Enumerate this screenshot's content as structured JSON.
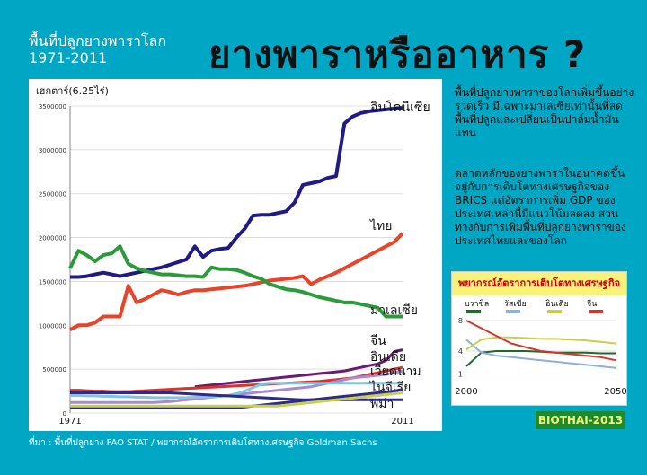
{
  "header": {
    "small_title_line1": "พื้นที่ปลูกยางพาราโลก",
    "small_title_line2": "1971-2011",
    "main_title": "ยางพาราหรืออาหาร ?"
  },
  "main_chart": {
    "unit_label": "เฮกตาร์(6.25ไร่)"
  },
  "text": {
    "para1": "พื้นที่ปลูกยางพาราของโลกเพิ่มขึ้นอย่างรวดเร็ว มีเฉพาะมาเลเซียเท่านั้นที่ลดพื้นที่ปลูกและเปลี่ยนเป็นปาล์มน้ำมันแทน",
    "para2": "ตลาดหลักของยางพาราในอนาคตขึ้นอยู่กับการเติบโตทางเศรษฐกิจของ BRICS แต่อัตราการเพิ่ม GDP ของประเทศเหล่านี้มีแนวโน้มลดลง สวนทางกับการเพิ่มพื้นที่ปลูกยางพาราของประเทศไทยและของโลก"
  },
  "badge": "BIOTHAI-2013",
  "source": "ที่มา : พื้นที่ปลูกยาง FAO STAT / พยากรณ์อัตราการเติบโตทางเศรษฐกิจ Goldman Sachs",
  "chart_data": [
    {
      "type": "line",
      "title": "พื้นที่ปลูกยางพาราโลก 1971-2011",
      "ylabel": "เฮกตาร์(6.25ไร่)",
      "x_tick_labels": [
        "1971",
        "2011"
      ],
      "x": [
        1971,
        1972,
        1973,
        1974,
        1975,
        1976,
        1977,
        1978,
        1979,
        1980,
        1981,
        1982,
        1983,
        1984,
        1985,
        1986,
        1987,
        1988,
        1989,
        1990,
        1991,
        1992,
        1993,
        1994,
        1995,
        1996,
        1997,
        1998,
        1999,
        2000,
        2001,
        2002,
        2003,
        2004,
        2005,
        2006,
        2007,
        2008,
        2009,
        2010,
        2011
      ],
      "xlim": [
        1971,
        2011
      ],
      "ylim": [
        0,
        3500000
      ],
      "y_ticks": [
        0,
        500000,
        1000000,
        1500000,
        2000000,
        2500000,
        3000000,
        3500000
      ],
      "y_tick_labels": [
        "0",
        "500000",
        "1000000",
        "1500000",
        "2000000",
        "2500000",
        "3000000",
        "3500000"
      ],
      "series": [
        {
          "name": "อินโดนีเซีย",
          "color": "#1f1a86",
          "values": [
            1550000,
            1550000,
            1560000,
            1580000,
            1600000,
            1580000,
            1560000,
            1580000,
            1600000,
            1620000,
            1640000,
            1660000,
            1690000,
            1720000,
            1750000,
            1900000,
            1780000,
            1850000,
            1870000,
            1880000,
            2000000,
            2100000,
            2250000,
            2260000,
            2260000,
            2280000,
            2300000,
            2400000,
            2600000,
            2620000,
            2640000,
            2680000,
            2700000,
            3300000,
            3380000,
            3420000,
            3440000,
            3450000,
            3460000,
            3470000,
            3480000
          ]
        },
        {
          "name": "ไทย",
          "color": "#e8442a",
          "values": [
            950000,
            1000000,
            1000000,
            1030000,
            1100000,
            1100000,
            1100000,
            1450000,
            1260000,
            1300000,
            1350000,
            1400000,
            1380000,
            1350000,
            1380000,
            1400000,
            1400000,
            1410000,
            1420000,
            1430000,
            1440000,
            1450000,
            1470000,
            1490000,
            1510000,
            1520000,
            1530000,
            1540000,
            1560000,
            1470000,
            1520000,
            1560000,
            1600000,
            1650000,
            1700000,
            1750000,
            1800000,
            1850000,
            1900000,
            1950000,
            2050000
          ]
        },
        {
          "name": "มาเลเซีย",
          "color": "#2a9a3a",
          "values": [
            1650000,
            1850000,
            1800000,
            1730000,
            1800000,
            1820000,
            1900000,
            1700000,
            1650000,
            1620000,
            1600000,
            1580000,
            1580000,
            1570000,
            1560000,
            1560000,
            1550000,
            1660000,
            1640000,
            1640000,
            1630000,
            1600000,
            1560000,
            1530000,
            1470000,
            1440000,
            1410000,
            1400000,
            1380000,
            1350000,
            1320000,
            1300000,
            1280000,
            1260000,
            1260000,
            1240000,
            1220000,
            1200000,
            1100000,
            1100000,
            1100000
          ]
        },
        {
          "name": "จีน",
          "color": "#6a1b70",
          "values": [
            null,
            null,
            null,
            null,
            null,
            null,
            null,
            null,
            null,
            null,
            null,
            null,
            null,
            null,
            null,
            300000,
            310000,
            320000,
            330000,
            340000,
            350000,
            360000,
            370000,
            380000,
            390000,
            400000,
            410000,
            420000,
            430000,
            440000,
            450000,
            460000,
            470000,
            480000,
            500000,
            520000,
            540000,
            560000,
            600000,
            700000,
            720000
          ]
        },
        {
          "name": "อินเดีย",
          "color": "#d9342b",
          "values": [
            260000,
            260000,
            255000,
            250000,
            250000,
            245000,
            245000,
            245000,
            250000,
            255000,
            260000,
            265000,
            270000,
            275000,
            280000,
            285000,
            290000,
            295000,
            300000,
            305000,
            310000,
            315000,
            320000,
            325000,
            330000,
            335000,
            340000,
            345000,
            350000,
            355000,
            360000,
            370000,
            380000,
            390000,
            400000,
            420000,
            440000,
            460000,
            480000,
            500000,
            520000
          ]
        },
        {
          "name": "เวียดนาม",
          "color": "#a78ad0",
          "values": [
            120000,
            120000,
            120000,
            120000,
            120000,
            120000,
            120000,
            120000,
            120000,
            120000,
            120000,
            125000,
            130000,
            140000,
            150000,
            160000,
            170000,
            180000,
            190000,
            200000,
            210000,
            220000,
            230000,
            240000,
            250000,
            260000,
            270000,
            280000,
            290000,
            300000,
            320000,
            340000,
            360000,
            380000,
            400000,
            410000,
            420000,
            430000,
            440000,
            460000,
            480000
          ]
        },
        {
          "name": "ไนจีเรีย",
          "color": "#7fc6e0",
          "values": [
            200000,
            200000,
            195000,
            195000,
            190000,
            190000,
            185000,
            185000,
            180000,
            180000,
            175000,
            175000,
            175000,
            175000,
            175000,
            180000,
            180000,
            185000,
            190000,
            200000,
            220000,
            250000,
            290000,
            330000,
            340000,
            340000,
            340000,
            340000,
            340000,
            340000,
            340000,
            340000,
            340000,
            340000,
            340000,
            340000,
            340000,
            340000,
            340000,
            340000,
            340000
          ]
        },
        {
          "name": "พม่า",
          "color": "#2d2a8a",
          "values": [
            60000,
            60000,
            60000,
            60000,
            60000,
            60000,
            60000,
            60000,
            60000,
            60000,
            60000,
            60000,
            60000,
            60000,
            60000,
            60000,
            60000,
            60000,
            60000,
            60000,
            60000,
            70000,
            80000,
            90000,
            100000,
            110000,
            120000,
            130000,
            140000,
            150000,
            160000,
            170000,
            180000,
            190000,
            200000,
            210000,
            220000,
            230000,
            240000,
            250000,
            270000
          ]
        },
        {
          "name": "",
          "color": "#2d2a8a",
          "values": [
            230000,
            230000,
            230000,
            230000,
            230000,
            230000,
            230000,
            230000,
            230000,
            230000,
            230000,
            230000,
            230000,
            225000,
            220000,
            215000,
            210000,
            205000,
            200000,
            195000,
            190000,
            185000,
            180000,
            175000,
            170000,
            165000,
            160000,
            155000,
            150000,
            150000,
            150000,
            150000,
            150000,
            150000,
            150000,
            150000,
            150000,
            150000,
            150000,
            150000,
            150000
          ]
        },
        {
          "name": "",
          "color": "#c8d04a",
          "values": [
            80000,
            80000,
            80000,
            80000,
            80000,
            80000,
            80000,
            80000,
            80000,
            80000,
            80000,
            80000,
            80000,
            80000,
            80000,
            80000,
            80000,
            80000,
            80000,
            80000,
            80000,
            80000,
            80000,
            80000,
            80000,
            80000,
            90000,
            100000,
            110000,
            120000,
            130000,
            140000,
            150000,
            160000,
            170000,
            180000,
            190000,
            200000,
            210000,
            220000,
            230000
          ]
        }
      ]
    },
    {
      "type": "line",
      "title": "พยากรณ์อัตราการเติบโตทางเศรษฐกิจ",
      "x": [
        2000,
        2005,
        2010,
        2015,
        2020,
        2025,
        2030,
        2035,
        2040,
        2045,
        2050
      ],
      "x_tick_labels": [
        "2000",
        "2050"
      ],
      "xlim": [
        2000,
        2050
      ],
      "ylim": [
        0,
        8
      ],
      "y_ticks": [
        1,
        4,
        8
      ],
      "y_tick_labels": [
        "1",
        "4",
        "8"
      ],
      "legend": "top",
      "series": [
        {
          "name": "บราซิล",
          "color": "#1e6a2a",
          "values": [
            2.0,
            3.8,
            4.0,
            4.0,
            4.0,
            3.9,
            3.8,
            3.8,
            3.8,
            3.7,
            3.7
          ]
        },
        {
          "name": "รัสเซีย",
          "color": "#8fb1d8",
          "values": [
            5.5,
            3.8,
            3.4,
            3.2,
            3.0,
            2.8,
            2.6,
            2.4,
            2.2,
            2.0,
            1.8
          ]
        },
        {
          "name": "อินเดีย",
          "color": "#c8d04a",
          "values": [
            4.2,
            5.5,
            5.8,
            5.8,
            5.7,
            5.6,
            5.6,
            5.5,
            5.4,
            5.2,
            5.0
          ]
        },
        {
          "name": "จีน",
          "color": "#d9342b",
          "values": [
            8.0,
            7.0,
            6.0,
            5.0,
            4.5,
            4.0,
            3.8,
            3.6,
            3.4,
            3.2,
            2.8
          ]
        }
      ]
    }
  ]
}
